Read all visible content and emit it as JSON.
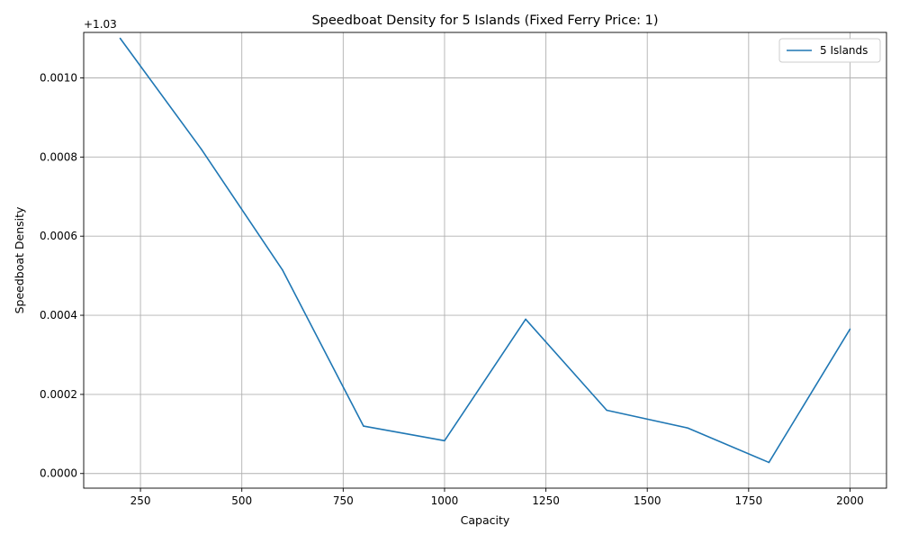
{
  "chart_data": {
    "type": "line",
    "title": "Speedboat Density for 5 Islands (Fixed Ferry Price: 1)",
    "xlabel": "Capacity",
    "ylabel": "Speedboat Density",
    "y_offset_label": "+1.03",
    "y_offset": 1.03,
    "xlim": [
      110,
      2090
    ],
    "ylim": [
      -3.7e-05,
      0.001115
    ],
    "x_ticks": [
      250,
      500,
      750,
      1000,
      1250,
      1500,
      1750,
      2000
    ],
    "x_tick_labels": [
      "250",
      "500",
      "750",
      "1000",
      "1250",
      "1500",
      "1750",
      "2000"
    ],
    "y_ticks": [
      0.0,
      0.0002,
      0.0004,
      0.0006,
      0.0008,
      0.001
    ],
    "y_tick_labels": [
      "0.0000",
      "0.0002",
      "0.0004",
      "0.0006",
      "0.0008",
      "0.0010"
    ],
    "grid": true,
    "legend_position": "top-right",
    "series": [
      {
        "name": "5 Islands",
        "color": "#1f77b4",
        "x": [
          200,
          400,
          600,
          800,
          1000,
          1200,
          1400,
          1600,
          1800,
          2000
        ],
        "y": [
          1.0311,
          1.03082,
          1.030515,
          1.03012,
          1.030083,
          1.03039,
          1.03016,
          1.030115,
          1.030028,
          1.030365
        ]
      }
    ]
  }
}
